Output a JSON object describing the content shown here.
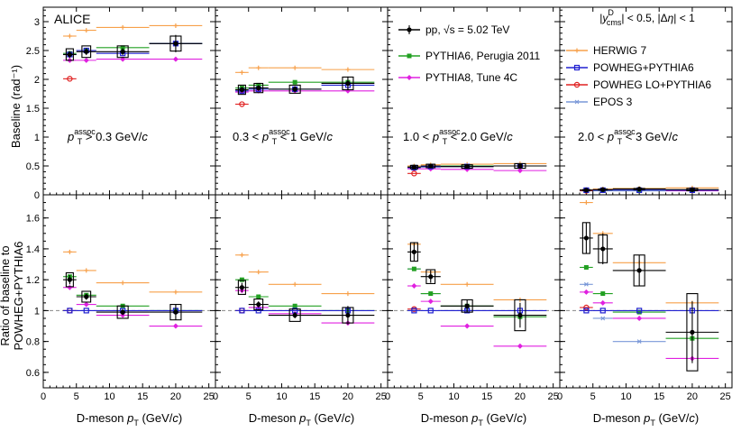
{
  "chart_data": {
    "type": "scatter",
    "experiment_label": "ALICE",
    "xlabel": "D-meson p_T (GeV/c)",
    "xlim": [
      0,
      26
    ],
    "x_ticks": [
      0,
      5,
      10,
      15,
      20,
      25
    ],
    "x_tick_labels": [
      "0",
      "5",
      "10",
      "15",
      "20",
      "25"
    ],
    "top_row": {
      "ylabel": "Baseline (rad⁻¹)",
      "ylim": [
        0,
        3.25
      ],
      "y_ticks": [
        0,
        0.5,
        1,
        1.5,
        2,
        2.5,
        3
      ],
      "y_tick_labels": [
        "0",
        "0.5",
        "1",
        "1.5",
        "2",
        "2.5",
        "3"
      ]
    },
    "bottom_row": {
      "ylabel_line1": "Ratio of baseline to",
      "ylabel_line2": "POWHEG+PYTHIA6",
      "ylim": [
        0.5,
        1.75
      ],
      "y_ticks": [
        0.6,
        0.8,
        1,
        1.2,
        1.4,
        1.6
      ],
      "y_tick_labels": [
        "0.6",
        "0.8",
        "1",
        "1.2",
        "1.4",
        "1.6"
      ],
      "reference_line": 1
    },
    "kinematic_selection": "|y_cms^D| < 0.5, |Δη| < 1",
    "panel_labels": [
      "p_T^assoc > 0.3 GeV/c",
      "0.3 < p_T^assoc < 1 GeV/c",
      "1.0 < p_T^assoc < 2.0 GeV/c",
      "2.0 < p_T^assoc < 3 GeV/c"
    ],
    "legend": [
      {
        "key": "data",
        "label": "pp, √s = 5.02 TeV"
      },
      {
        "key": "perugia",
        "label": "PYTHIA6, Perugia 2011"
      },
      {
        "key": "tune4c",
        "label": "PYTHIA8, Tune 4C"
      },
      {
        "key": "herwig",
        "label": "HERWIG 7"
      },
      {
        "key": "powheg",
        "label": "POWHEG+PYTHIA6"
      },
      {
        "key": "powheglo",
        "label": "POWHEG LO+PYTHIA6"
      },
      {
        "key": "epos",
        "label": "EPOS 3"
      }
    ],
    "colors": {
      "data": "#000000",
      "perugia": "#22a022",
      "tune4c": "#e020e0",
      "herwig": "#f7a04a",
      "powheg": "#2020d0",
      "powheglo": "#e02020",
      "epos": "#7a98d8"
    },
    "x_bins": [
      [
        3,
        5
      ],
      [
        5,
        8
      ],
      [
        8,
        16
      ],
      [
        16,
        24
      ]
    ],
    "x_centers": [
      4,
      6.5,
      12,
      20
    ],
    "panels": [
      {
        "baseline": {
          "data": [
            2.43,
            2.48,
            2.48,
            2.62
          ],
          "data_stat": [
            0.06,
            0.06,
            0.06,
            0.15
          ],
          "data_syst": [
            0.1,
            0.1,
            0.1,
            0.13
          ],
          "perugia": [
            2.45,
            2.5,
            2.55,
            2.62
          ],
          "tune4c": [
            2.33,
            2.33,
            2.35,
            2.35
          ],
          "herwig": [
            2.75,
            2.85,
            2.9,
            2.93
          ],
          "powheg": [
            2.43,
            2.5,
            2.45,
            2.62
          ],
          "powheglo": [
            2.01,
            null,
            null,
            null
          ],
          "epos": [
            null,
            null,
            null,
            null
          ]
        },
        "ratio": {
          "data": [
            1.2,
            1.09,
            0.99,
            0.99
          ],
          "data_stat": [
            0.03,
            0.02,
            0.02,
            0.05
          ],
          "data_syst": [
            0.045,
            0.035,
            0.04,
            0.05
          ],
          "perugia": [
            1.22,
            1.1,
            1.03,
            1.0
          ],
          "tune4c": [
            1.15,
            1.04,
            0.97,
            0.9
          ],
          "herwig": [
            1.38,
            1.26,
            1.18,
            1.12
          ],
          "powheg": [
            1.0,
            1.0,
            1.0,
            1.0
          ],
          "powheglo": [
            1.0,
            null,
            null,
            null
          ],
          "epos": [
            null,
            null,
            null,
            null
          ]
        }
      },
      {
        "baseline": {
          "data": [
            1.82,
            1.85,
            1.83,
            1.93
          ],
          "data_stat": [
            0.05,
            0.05,
            0.05,
            0.12
          ],
          "data_syst": [
            0.08,
            0.08,
            0.07,
            0.11
          ],
          "perugia": [
            1.85,
            1.9,
            1.95,
            1.95
          ],
          "tune4c": [
            1.78,
            1.8,
            1.8,
            1.8
          ],
          "herwig": [
            2.12,
            2.2,
            2.2,
            2.17
          ],
          "powheg": [
            1.8,
            1.83,
            1.83,
            1.9
          ],
          "powheglo": [
            1.57,
            null,
            null,
            null
          ],
          "epos": [
            null,
            null,
            null,
            null
          ]
        },
        "ratio": {
          "data": [
            1.15,
            1.04,
            0.97,
            0.97
          ],
          "data_stat": [
            0.03,
            0.02,
            0.02,
            0.06
          ],
          "data_syst": [
            0.045,
            0.035,
            0.04,
            0.05
          ],
          "perugia": [
            1.2,
            1.09,
            1.03,
            1.0
          ],
          "tune4c": [
            1.13,
            1.02,
            0.98,
            0.92
          ],
          "herwig": [
            1.36,
            1.25,
            1.17,
            1.11
          ],
          "powheg": [
            1.0,
            1.0,
            1.0,
            1.0
          ],
          "powheglo": [
            1.0,
            null,
            null,
            null
          ],
          "epos": [
            null,
            null,
            null,
            null
          ]
        }
      },
      {
        "baseline": {
          "data": [
            0.48,
            0.5,
            0.49,
            0.5
          ],
          "data_stat": [
            0.02,
            0.02,
            0.02,
            0.04
          ],
          "data_syst": [
            0.03,
            0.03,
            0.03,
            0.04
          ],
          "perugia": [
            0.48,
            0.49,
            0.5,
            0.5
          ],
          "tune4c": [
            0.45,
            0.45,
            0.44,
            0.42
          ],
          "herwig": [
            0.5,
            0.52,
            0.53,
            0.54
          ],
          "powheg": [
            0.47,
            0.49,
            0.49,
            0.5
          ],
          "powheglo": [
            0.37,
            null,
            null,
            null
          ],
          "epos": [
            0.48,
            0.48,
            null,
            null
          ]
        },
        "ratio": {
          "data": [
            1.38,
            1.22,
            1.03,
            0.97
          ],
          "data_stat": [
            0.06,
            0.04,
            0.04,
            0.08
          ],
          "data_syst": [
            0.06,
            0.045,
            0.04,
            0.1
          ],
          "perugia": [
            1.27,
            1.11,
            1.03,
            0.96
          ],
          "tune4c": [
            1.16,
            1.06,
            0.9,
            0.77
          ],
          "herwig": [
            1.43,
            1.25,
            1.17,
            1.07
          ],
          "powheg": [
            1.0,
            1.0,
            1.0,
            1.0
          ],
          "powheglo": [
            1.01,
            null,
            null,
            null
          ],
          "epos": [
            1.27,
            1.11,
            1.0,
            null
          ]
        }
      },
      {
        "baseline": {
          "data": [
            0.08,
            0.09,
            0.1,
            0.09
          ],
          "data_stat": [
            0.01,
            0.01,
            0.01,
            0.02
          ],
          "data_syst": [
            0.01,
            0.01,
            0.01,
            0.02
          ],
          "perugia": [
            0.08,
            0.08,
            0.08,
            0.08
          ],
          "tune4c": [
            0.08,
            0.08,
            0.08,
            0.07
          ],
          "herwig": [
            0.09,
            0.1,
            0.11,
            0.12
          ],
          "powheg": [
            0.08,
            0.08,
            0.08,
            0.08
          ],
          "powheglo": [
            0.07,
            null,
            null,
            null
          ],
          "epos": [
            0.07,
            0.07,
            0.07,
            null
          ]
        },
        "ratio": {
          "data": [
            1.47,
            1.4,
            1.26,
            0.86
          ],
          "data_stat": [
            0.1,
            0.1,
            0.1,
            0.2
          ],
          "data_syst": [
            0.1,
            0.09,
            0.1,
            0.25
          ],
          "perugia": [
            1.28,
            1.11,
            0.99,
            0.82
          ],
          "tune4c": [
            1.12,
            1.05,
            0.95,
            0.69
          ],
          "herwig": [
            1.7,
            1.5,
            1.31,
            1.05
          ],
          "powheg": [
            1.0,
            1.0,
            1.0,
            1.0
          ],
          "powheglo": [
            1.02,
            null,
            null,
            null
          ],
          "epos": [
            1.17,
            0.95,
            0.8,
            null
          ]
        }
      }
    ]
  }
}
